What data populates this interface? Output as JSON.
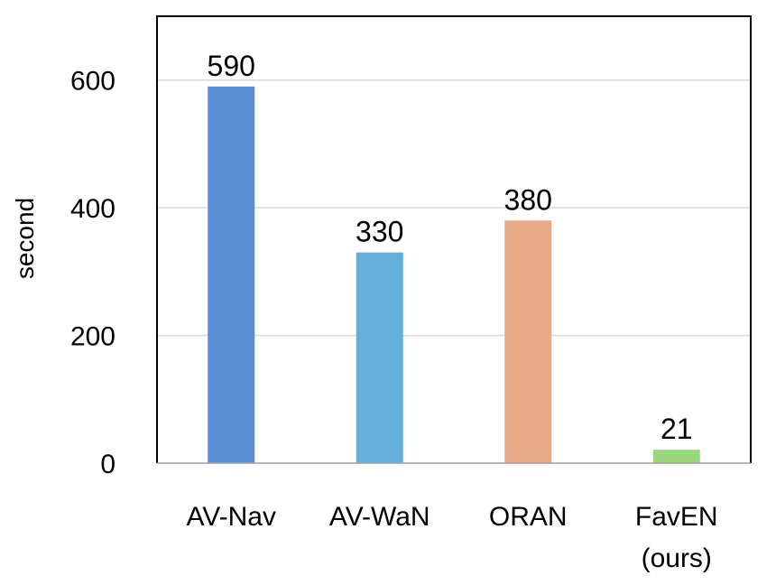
{
  "chart_data": {
    "type": "bar",
    "categories": [
      "AV-Nav",
      "AV-WaN",
      "ORAN",
      "FavEN (ours)"
    ],
    "category_lines": [
      [
        "AV-Nav"
      ],
      [
        "AV-WaN"
      ],
      [
        "ORAN"
      ],
      [
        "FavEN",
        "(ours)"
      ]
    ],
    "values": [
      590,
      330,
      380,
      21
    ],
    "data_labels": [
      "590",
      "330",
      "380",
      "21"
    ],
    "bar_colors": [
      "#5b8fd4",
      "#64aedb",
      "#e6aa86",
      "#99d77a"
    ],
    "title": "",
    "xlabel": "",
    "ylabel": "second",
    "ylim": [
      0,
      700
    ],
    "yticks": [
      0,
      200,
      400,
      600
    ],
    "grid": true,
    "grid_color": "#d9d9d9",
    "frame": true
  }
}
